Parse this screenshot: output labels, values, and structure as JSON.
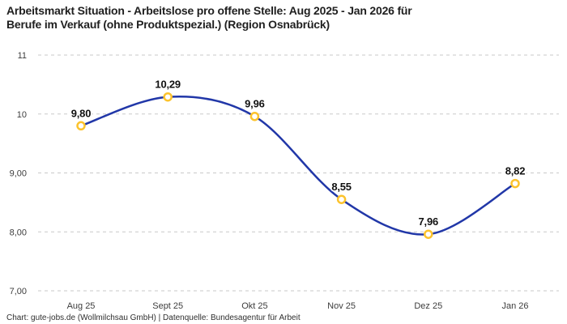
{
  "chart_data": {
    "type": "line",
    "title": "Arbeitsmarkt Situation - Arbeitslose pro offene Stelle: Aug 2025 - Jan 2026 für Berufe im Verkauf (ohne Produktspezial.) (Region Osnabrück)",
    "title_lines": [
      "Arbeitsmarkt Situation - Arbeitslose pro offene Stelle: Aug 2025 - Jan 2026 für",
      "Berufe im Verkauf (ohne Produktspezial.) (Region Osnabrück)"
    ],
    "categories": [
      "Aug 25",
      "Sept 25",
      "Okt 25",
      "Nov 25",
      "Dez 25",
      "Jan 26"
    ],
    "values": [
      9.8,
      10.29,
      9.96,
      8.55,
      7.96,
      8.82
    ],
    "value_labels": [
      "9,80",
      "10,29",
      "9,96",
      "8,55",
      "7,96",
      "8,82"
    ],
    "y_ticks": [
      {
        "value": 11,
        "label": "11"
      },
      {
        "value": 10,
        "label": "10"
      },
      {
        "value": 9,
        "label": "9,00"
      },
      {
        "value": 8,
        "label": "8,00"
      },
      {
        "value": 7,
        "label": "7,00"
      }
    ],
    "ylim": [
      7,
      11
    ],
    "xlabel": "",
    "ylabel": "",
    "grid": "horizontal-dashed",
    "legend": "none",
    "smooth": true,
    "colors": {
      "line": "#2137a8",
      "marker": "#fcc32d",
      "marker_fill": "#ffffff",
      "grid": "#c9c9c9",
      "title": "#1f1f1f",
      "tick": "#3d3d3d",
      "value_label": "#111111",
      "background": "#ffffff"
    },
    "credit": "Chart: gute-jobs.de (Wollmilchsau GmbH) | Datenquelle: Bundesagentur für Arbeit"
  }
}
